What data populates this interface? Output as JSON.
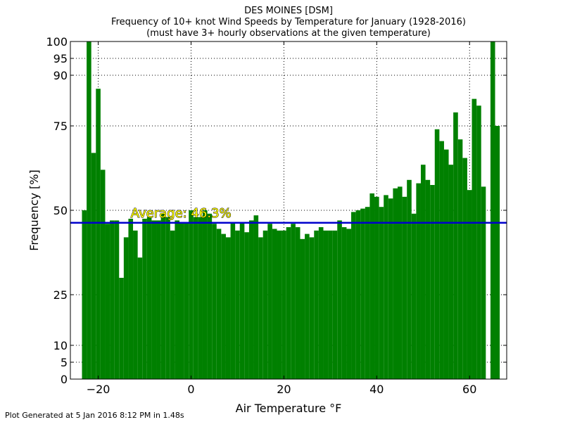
{
  "chart_data": {
    "type": "bar",
    "title": "DES MOINES [DSM]",
    "subtitle": "Frequency of 10+ knot Wind Speeds by Temperature for January (1928-2016)",
    "subtitle2": "(must have 3+ hourly observations at the given temperature)",
    "xlabel": "Air Temperature °F",
    "ylabel": "Frequency [%]",
    "xlim": [
      -26,
      68
    ],
    "ylim": [
      0,
      100
    ],
    "xticks": [
      -20,
      0,
      20,
      40,
      60
    ],
    "yticks": [
      0,
      5,
      10,
      25,
      50,
      75,
      90,
      95,
      100
    ],
    "grid": true,
    "bar_color": "#008000",
    "average": {
      "value": 46.3,
      "label": "Average: 46.3%",
      "color": "#0000cc"
    },
    "x": [
      -23,
      -22,
      -21,
      -20,
      -19,
      -18,
      -17,
      -16,
      -15,
      -14,
      -13,
      -12,
      -11,
      -10,
      -9,
      -8,
      -7,
      -6,
      -5,
      -4,
      -3,
      -2,
      -1,
      0,
      1,
      2,
      3,
      4,
      5,
      6,
      7,
      8,
      9,
      10,
      11,
      12,
      13,
      14,
      15,
      16,
      17,
      18,
      19,
      20,
      21,
      22,
      23,
      24,
      25,
      26,
      27,
      28,
      29,
      30,
      31,
      32,
      33,
      34,
      35,
      36,
      37,
      38,
      39,
      40,
      41,
      42,
      43,
      44,
      45,
      46,
      47,
      48,
      49,
      50,
      51,
      52,
      53,
      54,
      55,
      56,
      57,
      58,
      59,
      60,
      61,
      62,
      63,
      64,
      65,
      66
    ],
    "values": [
      50,
      100,
      67,
      86,
      62,
      46,
      47,
      47,
      30,
      42,
      47.5,
      44,
      36,
      47.5,
      48,
      47,
      47,
      49,
      48,
      44,
      47,
      46.5,
      46.5,
      50,
      48,
      48,
      50,
      49,
      46,
      44.5,
      43,
      42,
      46.5,
      44,
      46.5,
      43.5,
      47,
      48.5,
      42,
      44,
      46,
      44.5,
      44,
      44,
      45,
      46,
      45,
      41.5,
      43,
      42,
      44,
      45,
      44,
      44,
      44,
      47,
      45,
      44.5,
      49.5,
      50,
      50.5,
      51,
      55,
      54,
      51,
      54.5,
      53.5,
      56.5,
      57,
      54,
      59,
      49,
      58,
      63.5,
      59,
      57.5,
      74,
      70.5,
      68,
      63.5,
      79,
      71,
      65.5,
      56,
      83,
      81,
      57,
      0,
      100,
      75
    ]
  },
  "footer": "Plot Generated at 5 Jan 2016 8:12 PM in 1.48s"
}
